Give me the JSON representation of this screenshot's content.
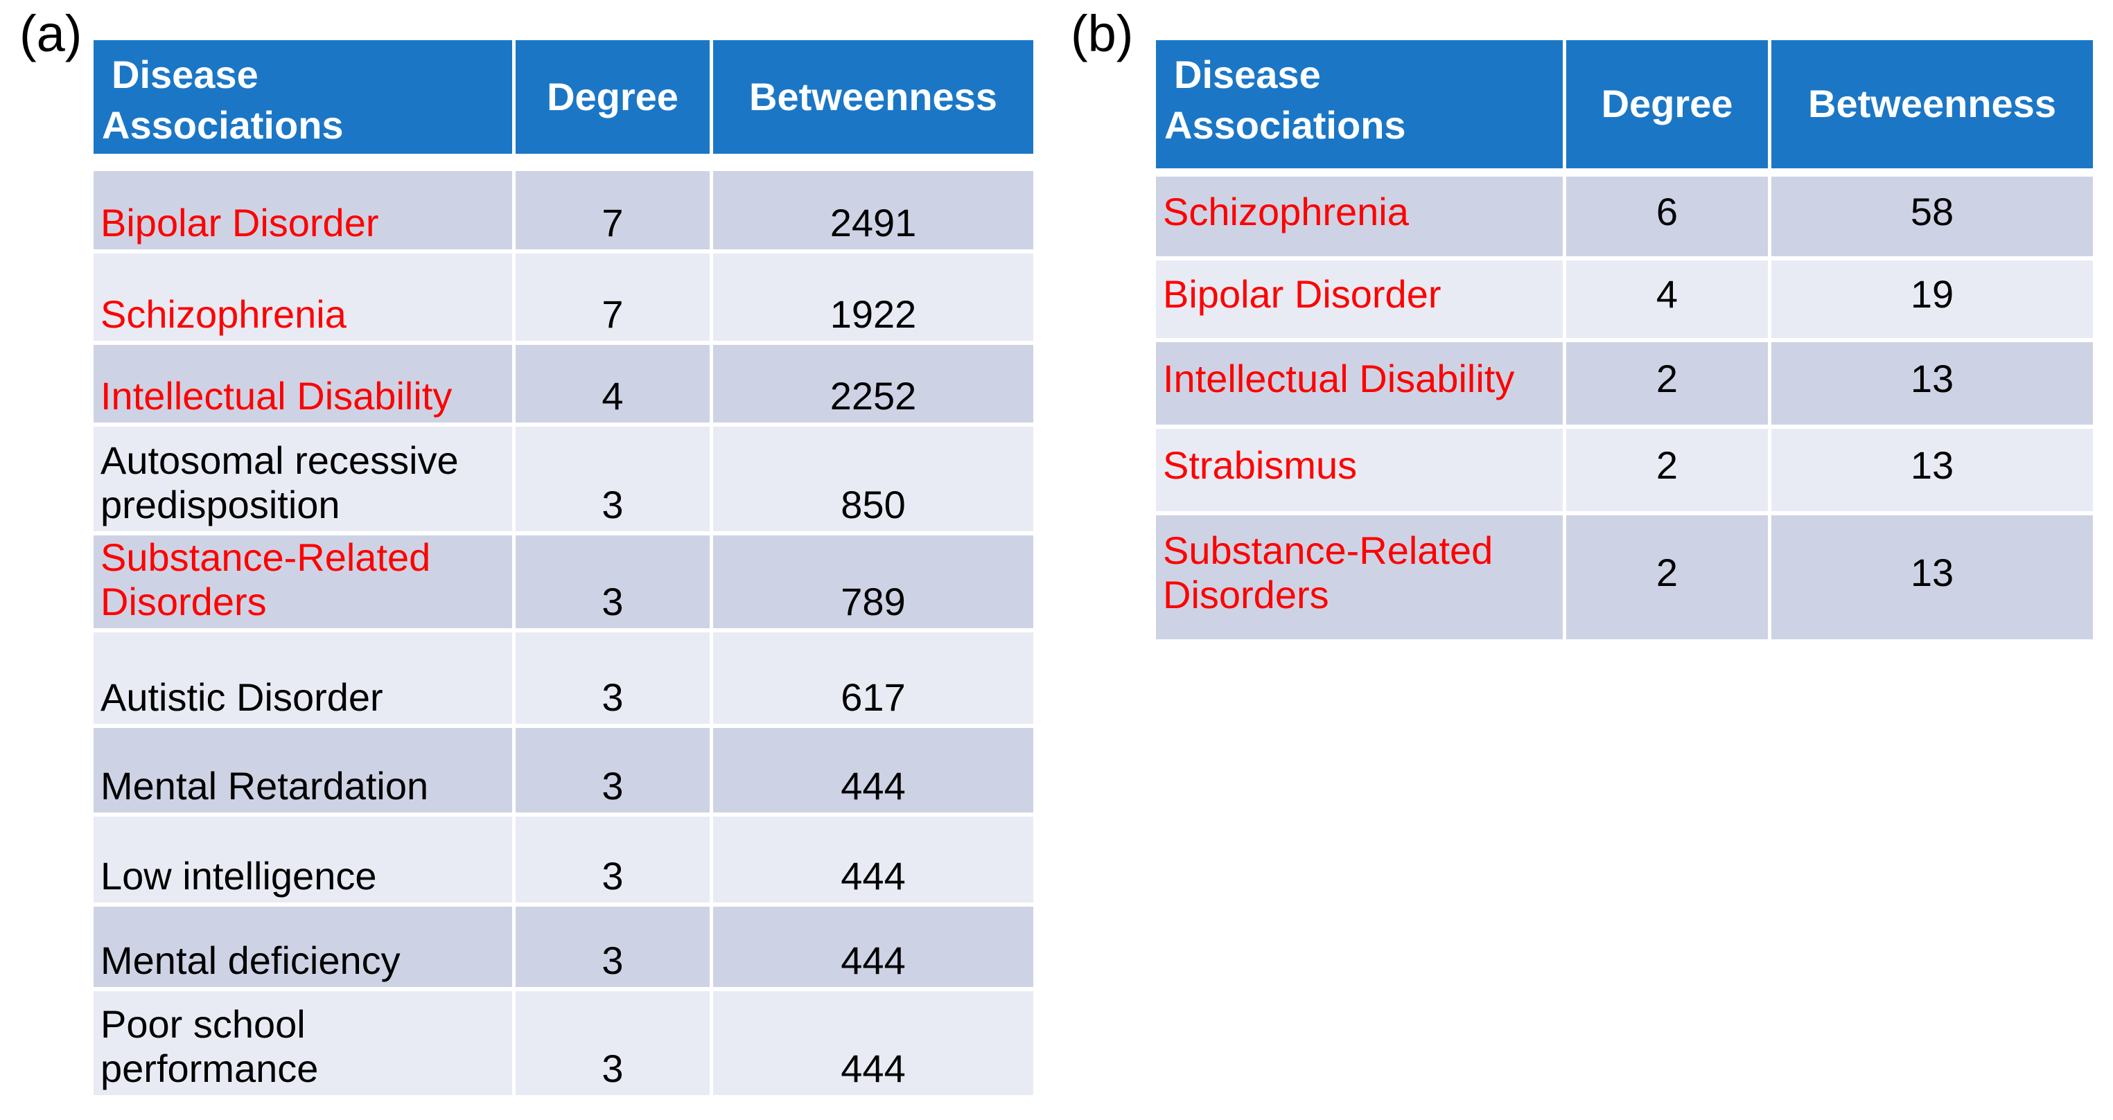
{
  "figure": {
    "type": "two-panel table figure",
    "panel_count": 2
  },
  "colors": {
    "page_bg": "#ffffff",
    "header_bg": "#1b77c6",
    "header_text": "#ffffff",
    "row_dark": "#cdd3e4",
    "row_light": "#e9ebf4",
    "body_text": "#000000",
    "highlight_text": "#fe0000"
  },
  "panels": [
    {
      "label": "(a)",
      "headers": {
        "disease": "Disease Associations",
        "degree": "Degree",
        "betweenness": "Betweenness"
      },
      "rows": [
        {
          "disease": "Bipolar Disorder",
          "highlighted": true,
          "degree": "7",
          "betweenness": "2491"
        },
        {
          "disease": "Schizophrenia",
          "highlighted": true,
          "degree": "7",
          "betweenness": "1922"
        },
        {
          "disease": "Intellectual Disability",
          "highlighted": true,
          "degree": "4",
          "betweenness": "2252"
        },
        {
          "disease": "Autosomal recessive predisposition",
          "highlighted": false,
          "degree": "3",
          "betweenness": "850"
        },
        {
          "disease": "Substance-Related Disorders",
          "highlighted": true,
          "degree": "3",
          "betweenness": "789"
        },
        {
          "disease": "Autistic Disorder",
          "highlighted": false,
          "degree": "3",
          "betweenness": "617"
        },
        {
          "disease": "Mental Retardation",
          "highlighted": false,
          "degree": "3",
          "betweenness": "444"
        },
        {
          "disease": "Low intelligence",
          "highlighted": false,
          "degree": "3",
          "betweenness": "444"
        },
        {
          "disease": "Mental deficiency",
          "highlighted": false,
          "degree": "3",
          "betweenness": "444"
        },
        {
          "disease": "Poor school performance",
          "highlighted": false,
          "degree": "3",
          "betweenness": "444"
        }
      ]
    },
    {
      "label": "(b)",
      "headers": {
        "disease": "Disease Associations",
        "degree": "Degree",
        "betweenness": "Betweenness"
      },
      "rows": [
        {
          "disease": "Schizophrenia",
          "highlighted": true,
          "degree": "6",
          "betweenness": "58"
        },
        {
          "disease": "Bipolar Disorder",
          "highlighted": true,
          "degree": "4",
          "betweenness": "19"
        },
        {
          "disease": "Intellectual Disability",
          "highlighted": true,
          "degree": "2",
          "betweenness": "13"
        },
        {
          "disease": "Strabismus",
          "highlighted": true,
          "degree": "2",
          "betweenness": "13"
        },
        {
          "disease": "Substance-Related Disorders",
          "highlighted": true,
          "degree": "2",
          "betweenness": "13"
        }
      ]
    }
  ],
  "chart_data": [
    {
      "type": "table",
      "title": "(a)",
      "columns": [
        "Disease Associations",
        "Degree",
        "Betweenness"
      ],
      "rows": [
        [
          "Bipolar Disorder",
          7,
          2491
        ],
        [
          "Schizophrenia",
          7,
          1922
        ],
        [
          "Intellectual Disability",
          4,
          2252
        ],
        [
          "Autosomal recessive predisposition",
          3,
          850
        ],
        [
          "Substance-Related Disorders",
          3,
          789
        ],
        [
          "Autistic Disorder",
          3,
          617
        ],
        [
          "Mental Retardation",
          3,
          444
        ],
        [
          "Low intelligence",
          3,
          444
        ],
        [
          "Mental deficiency",
          3,
          444
        ],
        [
          "Poor school performance",
          3,
          444
        ]
      ],
      "highlighted_rows": [
        "Bipolar Disorder",
        "Schizophrenia",
        "Intellectual Disability",
        "Substance-Related Disorders"
      ]
    },
    {
      "type": "table",
      "title": "(b)",
      "columns": [
        "Disease Associations",
        "Degree",
        "Betweenness"
      ],
      "rows": [
        [
          "Schizophrenia",
          6,
          58
        ],
        [
          "Bipolar Disorder",
          4,
          19
        ],
        [
          "Intellectual Disability",
          2,
          13
        ],
        [
          "Strabismus",
          2,
          13
        ],
        [
          "Substance-Related Disorders",
          2,
          13
        ]
      ],
      "highlighted_rows": [
        "Schizophrenia",
        "Bipolar Disorder",
        "Intellectual Disability",
        "Strabismus",
        "Substance-Related Disorders"
      ]
    }
  ]
}
